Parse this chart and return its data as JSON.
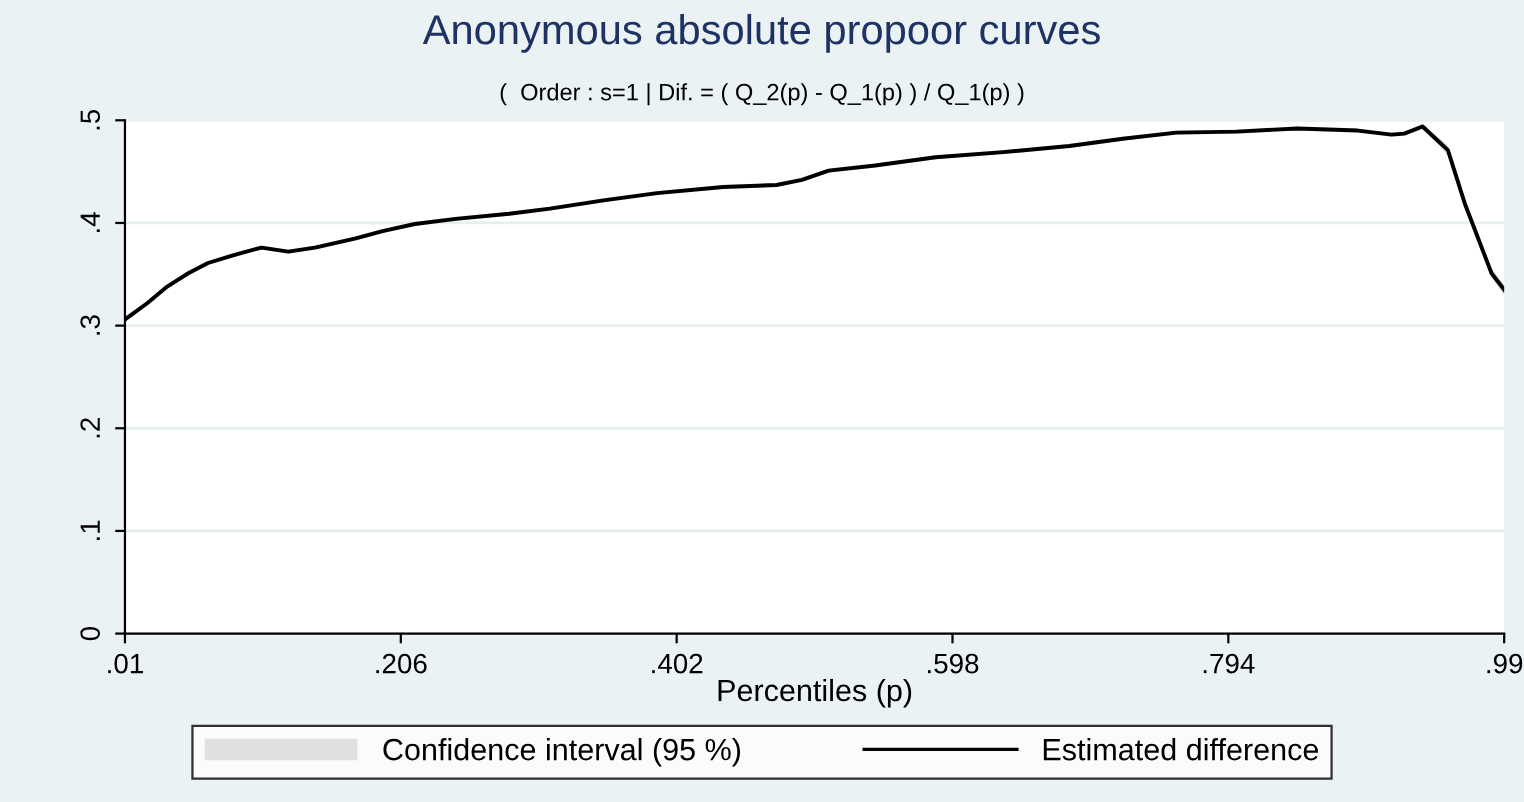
{
  "chart_data": {
    "type": "line",
    "title": "Anonymous absolute propoor curves",
    "subtitle": "(  Order : s=1 | Dif. = ( Q_2(p) - Q_1(p) ) / Q_1(p) )",
    "xlabel": "Percentiles (p)",
    "x": [
      0.01,
      0.026,
      0.04,
      0.055,
      0.069,
      0.088,
      0.107,
      0.126,
      0.145,
      0.174,
      0.193,
      0.216,
      0.245,
      0.283,
      0.312,
      0.35,
      0.388,
      0.435,
      0.473,
      0.491,
      0.51,
      0.543,
      0.586,
      0.634,
      0.681,
      0.719,
      0.757,
      0.8,
      0.843,
      0.886,
      0.91,
      0.919,
      0.932,
      0.95,
      0.962,
      0.981,
      0.99
    ],
    "series": [
      {
        "type": "area",
        "name": "Confidence interval (95 %)",
        "color": "#e0e0e0",
        "values": [
          null,
          null,
          null,
          null,
          null,
          null,
          null,
          null,
          null,
          null,
          null,
          null,
          null,
          null,
          null,
          null,
          null,
          null,
          null,
          null,
          null,
          null,
          null,
          null,
          null,
          null,
          null,
          null,
          null,
          null,
          null,
          null,
          null,
          null,
          null,
          null,
          null
        ],
        "lower": [
          0.303,
          0.32,
          0.336,
          0.349,
          0.359,
          0.367,
          0.374,
          0.37,
          0.374,
          0.383,
          0.39,
          0.397,
          0.402,
          0.407,
          0.412,
          0.42,
          0.427,
          0.433,
          0.435,
          0.44,
          0.449,
          0.454,
          0.462,
          0.467,
          0.473,
          0.48,
          0.486,
          0.487,
          0.49,
          0.488,
          0.484,
          0.485,
          0.491,
          0.466,
          0.414,
          0.346,
          0.33
        ],
        "upper": [
          0.309,
          0.324,
          0.34,
          0.353,
          0.363,
          0.371,
          0.378,
          0.374,
          0.378,
          0.387,
          0.394,
          0.401,
          0.406,
          0.411,
          0.416,
          0.424,
          0.431,
          0.437,
          0.439,
          0.444,
          0.453,
          0.458,
          0.466,
          0.471,
          0.477,
          0.484,
          0.49,
          0.491,
          0.494,
          0.492,
          0.488,
          0.489,
          0.497,
          0.476,
          0.424,
          0.356,
          0.34
        ]
      },
      {
        "name": "Estimated difference",
        "color": "#000000",
        "values": [
          0.306,
          0.322,
          0.338,
          0.351,
          0.361,
          0.369,
          0.376,
          0.372,
          0.376,
          0.385,
          0.392,
          0.399,
          0.404,
          0.409,
          0.414,
          0.422,
          0.429,
          0.435,
          0.437,
          0.442,
          0.451,
          0.456,
          0.464,
          0.469,
          0.475,
          0.482,
          0.488,
          0.489,
          0.492,
          0.49,
          0.486,
          0.487,
          0.494,
          0.471,
          0.419,
          0.351,
          0.335
        ]
      }
    ],
    "xlim": [
      0.01,
      0.99
    ],
    "xticks": [
      {
        "value": 0.01,
        "label": ".01"
      },
      {
        "value": 0.206,
        "label": ".206"
      },
      {
        "value": 0.402,
        "label": ".402"
      },
      {
        "value": 0.598,
        "label": ".598"
      },
      {
        "value": 0.794,
        "label": ".794"
      },
      {
        "value": 0.99,
        "label": ".99"
      }
    ],
    "ylim": [
      0,
      0.5
    ],
    "yticks": [
      {
        "value": 0,
        "label": "0"
      },
      {
        "value": 0.1,
        "label": ".1"
      },
      {
        "value": 0.2,
        "label": ".2"
      },
      {
        "value": 0.3,
        "label": ".3"
      },
      {
        "value": 0.4,
        "label": ".4"
      },
      {
        "value": 0.5,
        "label": ".5"
      }
    ],
    "grid": "y",
    "legend": "bottom"
  }
}
